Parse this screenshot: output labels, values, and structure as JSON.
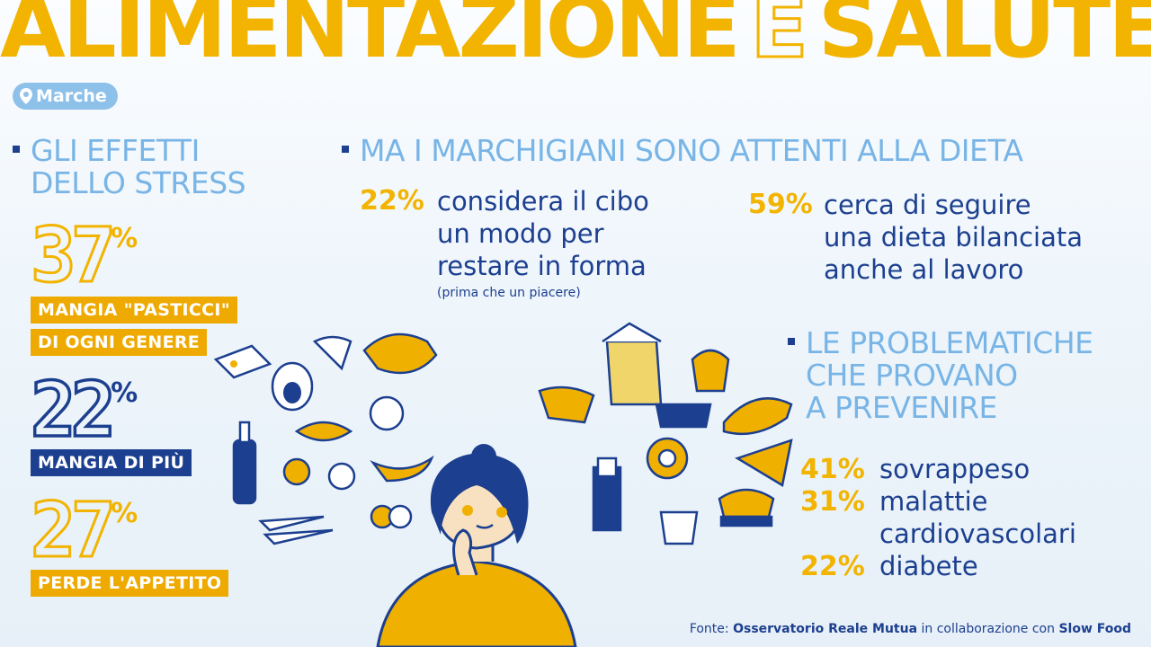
{
  "title": {
    "part1": "ALIMENTAZIONE",
    "part2": "E",
    "part3": "SALUTE"
  },
  "region": "Marche",
  "stress": {
    "heading_line1": "GLI EFFETTI",
    "heading_line2": "DELLO STRESS",
    "items": [
      {
        "value": "37",
        "unit": "%",
        "label_line1": "MANGIA \"PASTICCI\"",
        "label_line2": "DI OGNI GENERE"
      },
      {
        "value": "22",
        "unit": "%",
        "label_line1": "MANGIA DI PIÙ"
      },
      {
        "value": "27",
        "unit": "%",
        "label_line1": "PERDE L'APPETITO"
      }
    ]
  },
  "diet": {
    "heading": "MA I MARCHIGIANI SONO ATTENTI ALLA DIETA",
    "stat1": {
      "value": "22%",
      "line1": "considera il cibo",
      "line2": "un modo per",
      "line3": "restare in forma",
      "note": "(prima che un piacere)"
    },
    "stat2": {
      "value": "59%",
      "line1": "cerca di seguire",
      "line2": "una dieta bilanciata",
      "line3": "anche al lavoro"
    }
  },
  "problems": {
    "heading_line1": "LE PROBLEMATICHE",
    "heading_line2": "CHE PROVANO",
    "heading_line3": "A PREVENIRE",
    "items": [
      {
        "value": "41%",
        "label": "sovrappeso"
      },
      {
        "value": "31%",
        "label": "malattie",
        "label2": "cardiovascolari"
      },
      {
        "value": "22%",
        "label": "diabete"
      }
    ]
  },
  "source": {
    "prefix": "Fonte:",
    "org1": "Osservatorio Reale Mutua",
    "middle": "in collaborazione con",
    "org2": "Slow Food"
  },
  "colors": {
    "yellow": "#f2b400",
    "blue": "#1c3f8f",
    "light_blue": "#78b5e6"
  }
}
